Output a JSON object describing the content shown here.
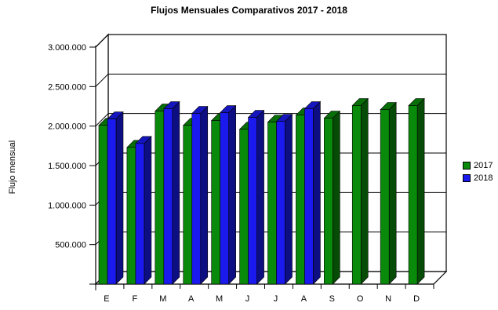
{
  "chart_data": {
    "type": "bar",
    "title": "Flujos Mensuales Comparativos 2017 - 2018",
    "xlabel": "",
    "ylabel": "Flujo mensual",
    "ylim": [
      0,
      3000000
    ],
    "yticks": [
      "500.000",
      "1.000.000",
      "1.500.000",
      "2.000.000",
      "2.500.000",
      "3.000.000"
    ],
    "categories": [
      "E",
      "F",
      "M",
      "A",
      "M",
      "J",
      "J",
      "A",
      "S",
      "O",
      "N",
      "D"
    ],
    "series": [
      {
        "name": "2017",
        "color": "#0a8a0a",
        "values": [
          2010000,
          1730000,
          2190000,
          2010000,
          2070000,
          1960000,
          2050000,
          2140000,
          2100000,
          2260000,
          2210000,
          2260000
        ]
      },
      {
        "name": "2018",
        "color": "#1a1aee",
        "values": [
          2090000,
          1780000,
          2220000,
          2160000,
          2170000,
          2110000,
          2060000,
          2220000,
          null,
          null,
          null,
          null
        ]
      }
    ],
    "grid": true,
    "legend_position": "right"
  }
}
